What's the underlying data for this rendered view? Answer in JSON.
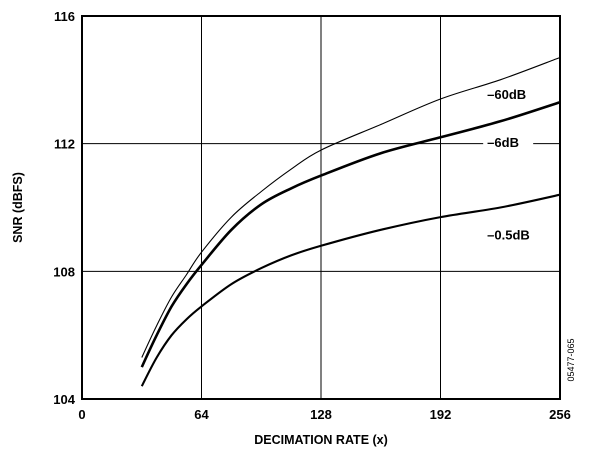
{
  "chart_data": {
    "type": "line",
    "title": "",
    "xlabel": "DECIMATION RATE (x)",
    "ylabel": "SNR (dBFS)",
    "xlim": [
      0,
      256
    ],
    "ylim": [
      104,
      116
    ],
    "xticks": [
      0,
      64,
      128,
      192,
      256
    ],
    "yticks": [
      104,
      108,
      112,
      116
    ],
    "xtick_labels": [
      "0",
      "64",
      "128",
      "192",
      "256"
    ],
    "ytick_labels": [
      "104",
      "108",
      "112",
      "116"
    ],
    "grid": true,
    "legend": "inline labels",
    "figure_id": "05477-065",
    "series": [
      {
        "name": "–60dB",
        "x": [
          32,
          40,
          48,
          56,
          64,
          80,
          96,
          112,
          128,
          160,
          192,
          224,
          256
        ],
        "y": [
          105.3,
          106.3,
          107.2,
          107.9,
          108.6,
          109.7,
          110.5,
          111.2,
          111.8,
          112.6,
          113.4,
          114.0,
          114.7
        ]
      },
      {
        "name": "–6dB",
        "x": [
          32,
          40,
          48,
          56,
          64,
          80,
          96,
          112,
          128,
          160,
          192,
          224,
          256
        ],
        "y": [
          105.0,
          106.0,
          106.9,
          107.6,
          108.2,
          109.3,
          110.1,
          110.6,
          111.0,
          111.7,
          112.2,
          112.7,
          113.3
        ]
      },
      {
        "name": "–0.5dB",
        "x": [
          32,
          40,
          48,
          56,
          64,
          80,
          96,
          112,
          128,
          160,
          192,
          224,
          256
        ],
        "y": [
          104.4,
          105.3,
          106.0,
          106.5,
          106.9,
          107.6,
          108.1,
          108.5,
          108.8,
          109.3,
          109.7,
          110.0,
          110.4
        ]
      }
    ]
  }
}
